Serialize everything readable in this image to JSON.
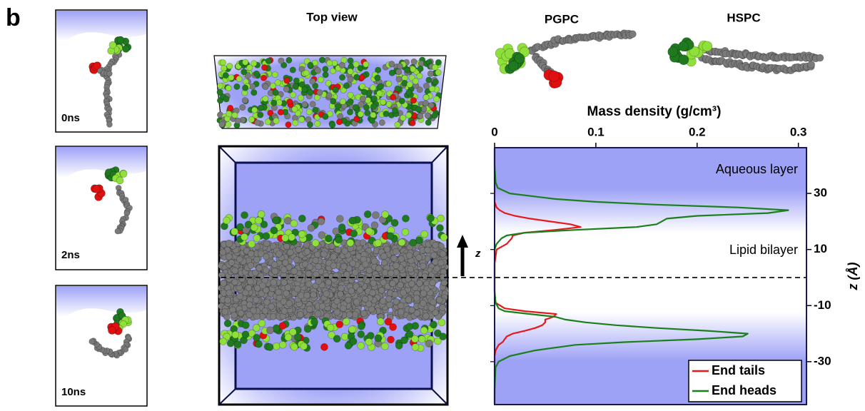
{
  "chart_data": {
    "type": "line",
    "panel_label": "b",
    "view_label": "Top view",
    "molecule_labels": [
      "PGPC",
      "HSPC"
    ],
    "snapshot_labels": [
      "0ns",
      "2ns",
      "10ns"
    ],
    "arrow_label": "z",
    "x_label": "Mass density (g/cm³)",
    "y_label": "z (Å)",
    "annotations": [
      "Aqueous layer",
      "Lipid bilayer"
    ],
    "xlim": [
      0,
      0.308
    ],
    "xticks": [
      0,
      0.1,
      0.2,
      0.3
    ],
    "ylim": [
      -45.3,
      46.3
    ],
    "yticks": [
      -30,
      -10,
      10,
      30
    ],
    "hline": 0,
    "legend": "lower right",
    "y": [
      46,
      40,
      34,
      32,
      30,
      28,
      27,
      26,
      25,
      24,
      23,
      22,
      21,
      20,
      19,
      18,
      17,
      16,
      15,
      14,
      12,
      10,
      5,
      0,
      -5,
      -9,
      -11,
      -12,
      -13,
      -14,
      -15,
      -16,
      -17,
      -18,
      -19,
      -20,
      -21,
      -22,
      -23,
      -24,
      -26,
      -28,
      -30,
      -32,
      -40,
      -45
    ],
    "series": [
      {
        "name": "End tails",
        "color": "#e41a1c",
        "values": [
          0,
          0,
          0,
          0,
          0,
          0,
          0,
          0.001,
          0.002,
          0.005,
          0.01,
          0.02,
          0.035,
          0.055,
          0.075,
          0.085,
          0.06,
          0.03,
          0.018,
          0.017,
          0.012,
          0.002,
          0,
          0,
          0,
          0.001,
          0.01,
          0.03,
          0.061,
          0.058,
          0.05,
          0.05,
          0.047,
          0.04,
          0.03,
          0.018,
          0.012,
          0.01,
          0.008,
          0.004,
          0.001,
          0,
          0,
          0,
          0,
          0
        ]
      },
      {
        "name": "End heads",
        "color": "#1b7f1b",
        "values": [
          0,
          0,
          0.001,
          0.003,
          0.015,
          0.06,
          0.1,
          0.16,
          0.24,
          0.29,
          0.27,
          0.2,
          0.17,
          0.165,
          0.16,
          0.14,
          0.08,
          0.03,
          0.012,
          0.007,
          0.002,
          0,
          0,
          0,
          0,
          0.001,
          0.004,
          0.01,
          0.035,
          0.06,
          0.07,
          0.09,
          0.12,
          0.16,
          0.21,
          0.25,
          0.245,
          0.2,
          0.13,
          0.08,
          0.04,
          0.015,
          0.004,
          0.001,
          0,
          0
        ]
      }
    ]
  }
}
